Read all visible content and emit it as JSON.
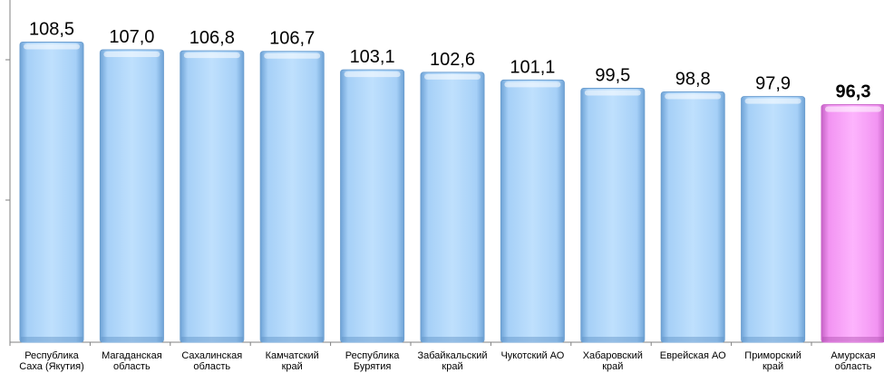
{
  "chart_data": {
    "type": "bar",
    "categories": [
      [
        "Республика",
        "Саха (Якутия)"
      ],
      [
        "Магаданская",
        "область"
      ],
      [
        "Сахалинская",
        "область"
      ],
      [
        "Камчатский",
        "край"
      ],
      [
        "Республика",
        "Бурятия"
      ],
      [
        "Забайкальский",
        "край"
      ],
      [
        "Чукотский АО"
      ],
      [
        "Хабаровский",
        "край"
      ],
      [
        "Еврейская АО"
      ],
      [
        "Приморский",
        "край"
      ],
      [
        "Амурская",
        "область"
      ]
    ],
    "values": [
      108.5,
      107.0,
      106.8,
      106.7,
      103.1,
      102.6,
      101.1,
      99.5,
      98.8,
      97.9,
      96.3
    ],
    "value_labels": [
      "108,5",
      "107,0",
      "106,8",
      "106,7",
      "103,1",
      "102,6",
      "101,1",
      "99,5",
      "98,8",
      "97,9",
      "96,3"
    ],
    "highlight_index": 10,
    "ylim": [
      50,
      110
    ],
    "grid": false,
    "colors": {
      "bar": "#a9d4fb",
      "bar_edge": "#6d9fd0",
      "highlight": "#f79cf7",
      "highlight_edge": "#c860c8",
      "axis": "#808080"
    }
  }
}
